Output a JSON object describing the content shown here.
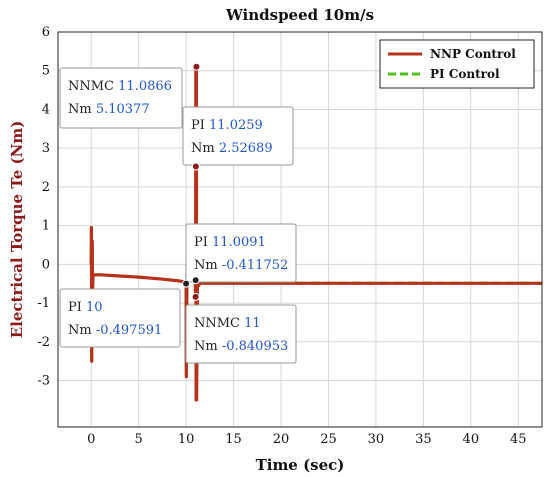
{
  "chart_data": {
    "type": "line",
    "title": "Windspeed 10m/s",
    "xlabel": "Time (sec)",
    "ylabel": "Electrical Torque Te (Nm)",
    "xlim": [
      -3.5,
      47.5
    ],
    "ylim": [
      -4.2,
      6
    ],
    "xticks": [
      0,
      5,
      10,
      15,
      20,
      25,
      30,
      35,
      40,
      45
    ],
    "yticks": [
      -3,
      -2,
      -1,
      0,
      1,
      2,
      3,
      4,
      5,
      6
    ],
    "grid": true,
    "legend": "top-right",
    "series": [
      {
        "name": "NNP Control",
        "color": "#b5331c",
        "style": "solid",
        "x": [
          0,
          0.02,
          0.05,
          0.1,
          0.15,
          0.2,
          0.4,
          1,
          3,
          5,
          7,
          9,
          9.8,
          9.95,
          10,
          10.02,
          10.1,
          10.4,
          10.8,
          10.95,
          11.0,
          11.02,
          11.05,
          11.0866,
          11.09,
          11.1,
          11.2,
          11.3,
          11.5,
          12,
          15,
          20,
          25,
          30,
          35,
          40,
          47.5
        ],
        "y": [
          0,
          0.95,
          -2.5,
          0.6,
          -0.6,
          -0.28,
          -0.27,
          -0.27,
          -0.3,
          -0.33,
          -0.37,
          -0.42,
          -0.45,
          -0.47,
          -0.497591,
          -2.9,
          0.2,
          -0.2,
          -0.3,
          -0.35,
          -0.84,
          5.10377,
          -3.5,
          5.10377,
          -0.84,
          -3.5,
          -0.2,
          -0.55,
          -0.48,
          -0.49,
          -0.49,
          -0.49,
          -0.49,
          -0.49,
          -0.49,
          -0.49,
          -0.49
        ]
      },
      {
        "name": "PI Control",
        "color": "#4cc01e",
        "style": "dashed",
        "x": [
          0,
          0.02,
          0.05,
          0.1,
          0.15,
          0.2,
          0.4,
          1,
          3,
          5,
          7,
          9,
          9.8,
          9.95,
          10,
          10.02,
          10.1,
          10.4,
          10.8,
          10.95,
          11.0,
          11.0091,
          11.0259,
          11.05,
          11.1,
          11.3,
          12,
          15,
          20,
          25,
          30,
          35,
          40,
          47.5
        ],
        "y": [
          0,
          0.95,
          -2.5,
          0.6,
          -0.6,
          -0.28,
          -0.27,
          -0.27,
          -0.3,
          -0.33,
          -0.37,
          -0.42,
          -0.45,
          -0.47,
          -0.497591,
          -2.9,
          0.3,
          -0.1,
          0.2,
          -0.3,
          -0.4,
          -0.411752,
          2.52689,
          -3.0,
          0.2,
          -0.48,
          -0.49,
          -0.49,
          -0.49,
          -0.49,
          -0.49,
          -0.49,
          -0.49,
          -0.49
        ]
      }
    ],
    "annotations": [
      {
        "name": "NNMC",
        "x_value": "11.0866",
        "y_value": "5.10377",
        "x": 11.0866,
        "y": 5.10377,
        "color": "#8b1a1a"
      },
      {
        "name": "PI",
        "x_value": "11.0259",
        "y_value": "2.52689",
        "x": 11.0259,
        "y": 2.52689,
        "color": "#8b1a1a"
      },
      {
        "name": "PI",
        "x_value": "11.0091",
        "y_value": "-0.411752",
        "x": 11.0091,
        "y": -0.411752,
        "color": "#222222"
      },
      {
        "name": "PI",
        "x_value": "10",
        "y_value": "-0.497591",
        "x": 10,
        "y": -0.497591,
        "color": "#222222"
      },
      {
        "name": "NNMC",
        "x_value": "11",
        "y_value": "-0.840953",
        "x": 11,
        "y": -0.840953,
        "color": "#8b1a1a"
      }
    ],
    "tooltip_labels": {
      "x_prefix": "",
      "y_prefix": "Nm"
    }
  }
}
